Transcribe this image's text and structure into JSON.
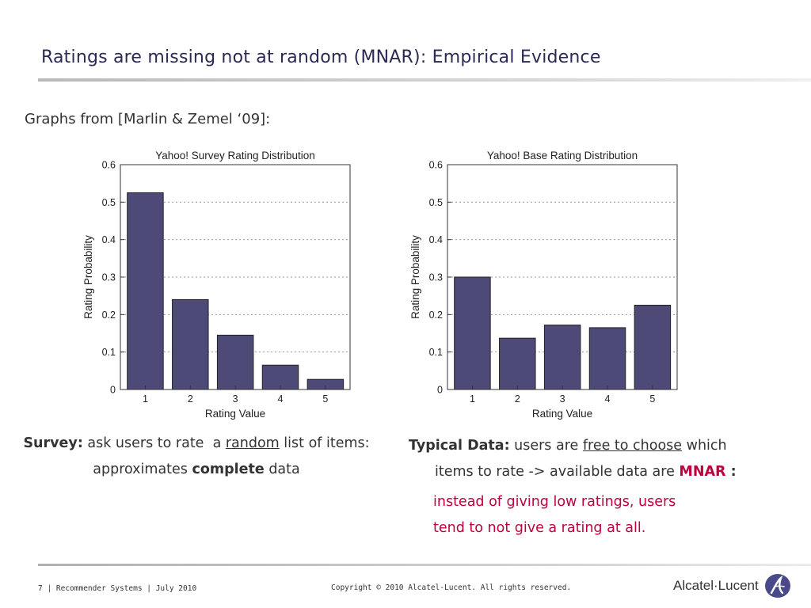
{
  "slide": {
    "title": "Ratings are missing not at random (MNAR): Empirical Evidence",
    "subtitle": "Graphs from [Marlin & Zemel ‘09]:"
  },
  "chart_data": [
    {
      "type": "bar",
      "title": "Yahoo! Survey Rating Distribution",
      "xlabel": "Rating Value",
      "ylabel": "Rating Probability",
      "categories": [
        "1",
        "2",
        "3",
        "4",
        "5"
      ],
      "values": [
        0.525,
        0.24,
        0.145,
        0.065,
        0.027
      ],
      "ylim": [
        0,
        0.6
      ],
      "yticks": [
        "0",
        "0.1",
        "0.2",
        "0.3",
        "0.4",
        "0.5",
        "0.6"
      ],
      "grid": "dotted horizontal",
      "bar_color": "#4d4a78"
    },
    {
      "type": "bar",
      "title": "Yahoo! Base Rating Distribution",
      "xlabel": "Rating Value",
      "ylabel": "Rating Probability",
      "categories": [
        "1",
        "2",
        "3",
        "4",
        "5"
      ],
      "values": [
        0.3,
        0.137,
        0.172,
        0.165,
        0.225
      ],
      "ylim": [
        0,
        0.6
      ],
      "yticks": [
        "0",
        "0.1",
        "0.2",
        "0.3",
        "0.4",
        "0.5",
        "0.6"
      ],
      "grid": "dotted horizontal",
      "bar_color": "#4d4a78"
    }
  ],
  "captions": {
    "left": {
      "label": "Survey:",
      "t1": " ask users to rate  a ",
      "random": "random",
      "t2": " list of items: approximates ",
      "complete": "complete",
      "t3": " data"
    },
    "right": {
      "label": "Typical Data:",
      "t1": " users are ",
      "free": "free to choose",
      "t2": " which",
      "line2": "items to rate -> available data are ",
      "mnar": "MNAR",
      "colon": " :",
      "red1": "instead of giving low ratings, users",
      "red2": "tend to not give a rating at all."
    }
  },
  "footer": {
    "left": "7 | Recommender Systems | July 2010",
    "center": "Copyright © 2010 Alcatel-Lucent. All rights reserved.",
    "logo": "Alcatel·Lucent"
  },
  "colors": {
    "title": "#2a2a55",
    "accent_red": "#c0003c",
    "bar": "#4d4a78"
  }
}
